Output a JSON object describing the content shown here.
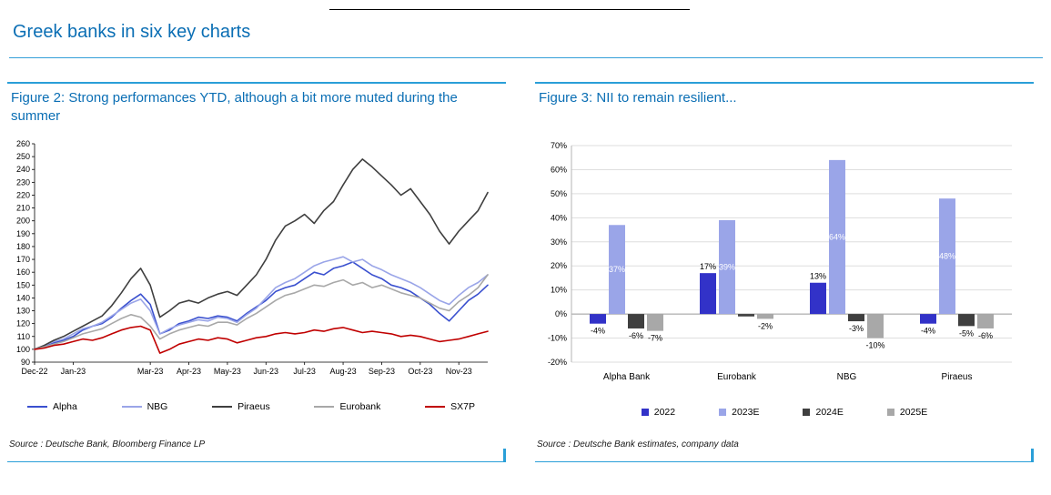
{
  "page": {
    "title": "Greek banks in six key charts"
  },
  "colors": {
    "accent_text": "#0a6eb4",
    "rule_blue": "#2a9fd8",
    "in_bar_label": "#ffffff"
  },
  "chart_data": [
    {
      "type": "line",
      "title": "Figure 2: Strong performances YTD, although a bit more muted during the summer",
      "source": "Source : Deutsche Bank, Bloomberg Finance LP",
      "ylim": [
        90,
        260
      ],
      "ytick_step": 10,
      "x_labels": [
        "Dec-22",
        "Jan-23",
        "Mar-23",
        "Apr-23",
        "May-23",
        "Jun-23",
        "Jul-23",
        "Aug-23",
        "Sep-23",
        "Oct-23",
        "Nov-23"
      ],
      "label_month_positions": [
        0,
        1,
        3,
        4,
        5,
        6,
        7,
        8,
        9,
        10,
        11
      ],
      "grid": false,
      "legend_position": "bottom",
      "series": [
        {
          "name": "Alpha",
          "color": "#3a50cf",
          "values": [
            100,
            102,
            105,
            107,
            110,
            115,
            118,
            120,
            125,
            132,
            138,
            143,
            135,
            112,
            115,
            120,
            122,
            125,
            124,
            126,
            125,
            122,
            128,
            133,
            138,
            145,
            148,
            150,
            155,
            160,
            158,
            163,
            165,
            168,
            163,
            158,
            155,
            150,
            148,
            145,
            140,
            135,
            128,
            122,
            130,
            138,
            143,
            150
          ]
        },
        {
          "name": "NBG",
          "color": "#9aa5e8",
          "values": [
            100,
            103,
            106,
            108,
            112,
            116,
            118,
            121,
            126,
            131,
            136,
            139,
            130,
            112,
            116,
            119,
            121,
            123,
            122,
            125,
            124,
            121,
            127,
            132,
            140,
            148,
            152,
            155,
            160,
            165,
            168,
            170,
            172,
            168,
            170,
            165,
            162,
            158,
            155,
            152,
            148,
            143,
            138,
            135,
            142,
            148,
            152,
            158
          ]
        },
        {
          "name": "Piraeus",
          "color": "#3f3f3f",
          "values": [
            100,
            103,
            107,
            110,
            114,
            118,
            122,
            126,
            134,
            144,
            155,
            163,
            150,
            125,
            130,
            136,
            138,
            136,
            140,
            143,
            145,
            142,
            150,
            158,
            170,
            185,
            196,
            200,
            205,
            198,
            208,
            215,
            228,
            240,
            248,
            242,
            235,
            228,
            220,
            225,
            215,
            205,
            192,
            182,
            192,
            200,
            208,
            222
          ]
        },
        {
          "name": "Eurobank",
          "color": "#a8a8a8",
          "values": [
            100,
            102,
            104,
            106,
            109,
            112,
            114,
            116,
            120,
            124,
            127,
            125,
            118,
            108,
            112,
            115,
            117,
            119,
            118,
            121,
            121,
            119,
            124,
            128,
            133,
            138,
            142,
            144,
            147,
            150,
            149,
            152,
            154,
            150,
            152,
            148,
            150,
            147,
            144,
            142,
            140,
            136,
            132,
            130,
            137,
            142,
            148,
            158
          ]
        },
        {
          "name": "SX7P",
          "color": "#c00000",
          "values": [
            100,
            101,
            103,
            104,
            106,
            108,
            107,
            109,
            112,
            115,
            117,
            118,
            115,
            97,
            100,
            104,
            106,
            108,
            107,
            109,
            108,
            105,
            107,
            109,
            110,
            112,
            113,
            112,
            113,
            115,
            114,
            116,
            117,
            115,
            113,
            114,
            113,
            112,
            110,
            111,
            110,
            108,
            106,
            107,
            108,
            110,
            112,
            114
          ]
        }
      ]
    },
    {
      "type": "bar",
      "title": "Figure 3: NII to remain resilient...",
      "source": "Source : Deutsche Bank estimates, company data",
      "ylim": [
        -20,
        70
      ],
      "ytick_step": 10,
      "grid": true,
      "legend_position": "bottom",
      "categories": [
        "Alpha Bank",
        "Eurobank",
        "NBG",
        "Piraeus"
      ],
      "series": [
        {
          "name": "2022",
          "color": "#3232c8",
          "values": [
            -4,
            17,
            13,
            -4
          ],
          "labels": [
            "-4%",
            "17%",
            "13%",
            "-4%"
          ],
          "label_pos": [
            "out",
            "out",
            "out",
            "out"
          ]
        },
        {
          "name": "2023E",
          "color": "#9aa5e8",
          "values": [
            37,
            39,
            64,
            48
          ],
          "labels": [
            "37%",
            "39%",
            "64%",
            "48%"
          ],
          "label_pos": [
            "in",
            "in",
            "in",
            "in"
          ]
        },
        {
          "name": "2024E",
          "color": "#3f3f3f",
          "values": [
            -6,
            -1,
            -3,
            -5
          ],
          "labels": [
            "-6%",
            null,
            "-3%",
            "-5%"
          ],
          "label_pos": [
            "out",
            "out",
            "out",
            "out"
          ]
        },
        {
          "name": "2025E",
          "color": "#a8a8a8",
          "values": [
            -7,
            -2,
            -10,
            -6
          ],
          "labels": [
            "-7%",
            "-2%",
            "-10%",
            "-6%"
          ],
          "label_pos": [
            "out",
            "out",
            "out",
            "out"
          ]
        }
      ]
    }
  ]
}
